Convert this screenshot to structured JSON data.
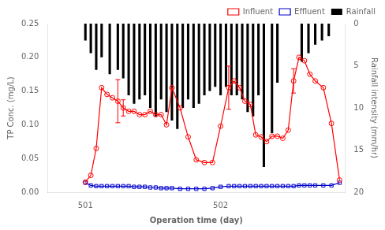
{
  "chart_data": {
    "type": "line",
    "xlabel": "Operation time (day)",
    "ylabel": "TP Conc. (mg/L)",
    "y2label": "Rainfall intensity (mm/hr)",
    "xlim": [
      500.72,
      502.92
    ],
    "xticks": [
      501,
      502
    ],
    "ylim": [
      0.0,
      0.25
    ],
    "yticks": [
      {
        "value": 0.0,
        "label": "0.00"
      },
      {
        "value": 0.05,
        "label": "0.05"
      },
      {
        "value": 0.1,
        "label": "0.10"
      },
      {
        "value": 0.15,
        "label": "0.15"
      },
      {
        "value": 0.2,
        "label": "0.20"
      },
      {
        "value": 0.25,
        "label": "0.25"
      }
    ],
    "y2lim": [
      20,
      0
    ],
    "y2ticks": [
      0,
      5,
      10,
      15,
      20
    ],
    "grid": false,
    "legend": "upper right",
    "series": [
      {
        "name": "Influent",
        "type": "line",
        "color": "#FF0000",
        "marker": "circle",
        "line_style": "solid",
        "x": [
          501.0,
          501.04,
          501.08,
          501.12,
          501.16,
          501.2,
          501.24,
          501.28,
          501.32,
          501.36,
          501.4,
          501.44,
          501.48,
          501.52,
          501.56,
          501.6,
          501.64,
          501.7,
          501.76,
          501.82,
          501.88,
          501.94,
          502.0,
          502.06,
          502.1,
          502.14,
          502.18,
          502.22,
          502.26,
          502.3,
          502.34,
          502.38,
          502.42,
          502.46,
          502.5,
          502.54,
          502.58,
          502.62,
          502.66,
          502.7,
          502.76,
          502.82,
          502.88
        ],
        "values": [
          0.015,
          0.025,
          0.065,
          0.155,
          0.145,
          0.14,
          0.135,
          0.125,
          0.12,
          0.12,
          0.115,
          0.115,
          0.12,
          0.115,
          0.115,
          0.1,
          0.155,
          0.125,
          0.082,
          0.048,
          0.044,
          0.044,
          0.098,
          0.155,
          0.165,
          0.155,
          0.135,
          0.13,
          0.085,
          0.082,
          0.075,
          0.083,
          0.083,
          0.08,
          0.092,
          0.165,
          0.2,
          0.195,
          0.175,
          0.165,
          0.155,
          0.102,
          0.018
        ],
        "error": [
          0,
          0,
          0,
          0,
          0,
          0,
          0.032,
          0.012,
          0,
          0,
          0,
          0,
          0,
          0,
          0,
          0,
          0,
          0,
          0,
          0,
          0,
          0,
          0,
          0.032,
          0,
          0,
          0,
          0,
          0,
          0,
          0,
          0,
          0,
          0,
          0,
          0.018,
          0,
          0,
          0,
          0,
          0,
          0,
          0
        ]
      },
      {
        "name": "Effluent",
        "type": "line",
        "color": "#0000CC",
        "marker": "square",
        "line_style": "solid",
        "x": [
          501.0,
          501.04,
          501.08,
          501.12,
          501.16,
          501.2,
          501.24,
          501.28,
          501.32,
          501.36,
          501.4,
          501.44,
          501.48,
          501.52,
          501.56,
          501.6,
          501.64,
          501.7,
          501.76,
          501.82,
          501.88,
          501.94,
          502.0,
          502.06,
          502.1,
          502.14,
          502.18,
          502.22,
          502.26,
          502.3,
          502.34,
          502.38,
          502.42,
          502.46,
          502.5,
          502.54,
          502.58,
          502.62,
          502.66,
          502.7,
          502.76,
          502.82,
          502.88
        ],
        "values": [
          0.014,
          0.01,
          0.009,
          0.009,
          0.009,
          0.009,
          0.009,
          0.009,
          0.009,
          0.008,
          0.008,
          0.008,
          0.007,
          0.007,
          0.006,
          0.006,
          0.006,
          0.005,
          0.005,
          0.005,
          0.005,
          0.006,
          0.008,
          0.009,
          0.009,
          0.009,
          0.009,
          0.009,
          0.009,
          0.009,
          0.009,
          0.009,
          0.009,
          0.009,
          0.009,
          0.009,
          0.01,
          0.01,
          0.01,
          0.01,
          0.01,
          0.01,
          0.014
        ]
      },
      {
        "name": "Rainfall",
        "type": "bar",
        "color": "#000000",
        "axis": "y2",
        "x": [
          501.0,
          501.04,
          501.08,
          501.12,
          501.18,
          501.24,
          501.28,
          501.32,
          501.36,
          501.4,
          501.44,
          501.48,
          501.52,
          501.56,
          501.6,
          501.64,
          501.68,
          501.72,
          501.76,
          501.8,
          501.84,
          501.88,
          501.92,
          501.96,
          502.0,
          502.04,
          502.08,
          502.12,
          502.16,
          502.2,
          502.24,
          502.28,
          502.32,
          502.38,
          502.42,
          502.6,
          502.65,
          502.7,
          502.75,
          502.8
        ],
        "values": [
          2.0,
          3.5,
          5.5,
          4.0,
          6.0,
          5.5,
          6.5,
          8.5,
          9.5,
          9.0,
          8.5,
          10.0,
          11.0,
          9.0,
          10.5,
          11.5,
          12.5,
          10.0,
          9.0,
          10.0,
          9.5,
          8.5,
          8.0,
          7.5,
          8.5,
          7.5,
          8.5,
          8.5,
          9.0,
          10.5,
          11.0,
          8.5,
          17.0,
          13.0,
          7.0,
          4.5,
          3.5,
          2.5,
          2.0,
          1.5
        ]
      }
    ]
  }
}
